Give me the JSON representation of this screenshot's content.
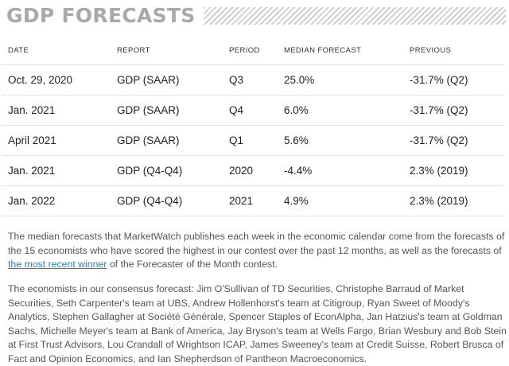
{
  "title": "GDP FORECASTS",
  "table": {
    "headers": {
      "date": "DATE",
      "report": "REPORT",
      "period": "PERIOD",
      "median": "MEDIAN FORECAST",
      "previous": "PREVIOUS"
    },
    "rows": [
      {
        "date": "Oct. 29, 2020",
        "report": "GDP (SAAR)",
        "period": "Q3",
        "median": "25.0%",
        "previous": "-31.7% (Q2)"
      },
      {
        "date": "Jan. 2021",
        "report": "GDP (SAAR)",
        "period": "Q4",
        "median": "6.0%",
        "previous": "-31.7% (Q2)"
      },
      {
        "date": "April 2021",
        "report": "GDP (SAAR)",
        "period": "Q1",
        "median": "5.6%",
        "previous": "-31.7% (Q2)"
      },
      {
        "date": "Jan. 2021",
        "report": "GDP (Q4-Q4)",
        "period": "2020",
        "median": "-4.4%",
        "previous": "2.3% (2019)"
      },
      {
        "date": "Jan. 2022",
        "report": "GDP (Q4-Q4)",
        "period": "2021",
        "median": "4.9%",
        "previous": "2.3% (2019)"
      }
    ]
  },
  "paragraph1": {
    "before_link": "The median forecasts that MarketWatch publishes each week in the economic calendar come from the forecasts of the 15 economists who have scored the highest in our contest over the past 12 months, as well as the forecasts of ",
    "link_text": "the most recent winner",
    "after_link": " of the Forecaster of the Month contest."
  },
  "paragraph2": "The economists in our consensus forecast: Jim O'Sullivan of TD Securities, Christophe Barraud of Market Securities, Seth Carpenter's team at UBS, Andrew Hollenhorst's team at Citigroup, Ryan Sweet of Moody's Analytics, Stephen Gallagher at Société Générale, Spencer Staples of EconAlpha, Jan Hatzius's team at Goldman Sachs, Michelle Meyer's team at Bank of America, Jay Bryson's team at Wells Fargo, Brian Wesbury and Bob Stein at First Trust Advisors, Lou Crandall of Wrightson ICAP, James Sweeney's team at Credit Suisse, Robert Brusca of Fact and Opinion Economics, and Ian Shepherdson of Pantheon Macroeconomics.",
  "colors": {
    "title": "#a9a9a9",
    "link": "#2a7fb8",
    "body_text": "#555555",
    "row_divider": "#e3e3e3"
  }
}
